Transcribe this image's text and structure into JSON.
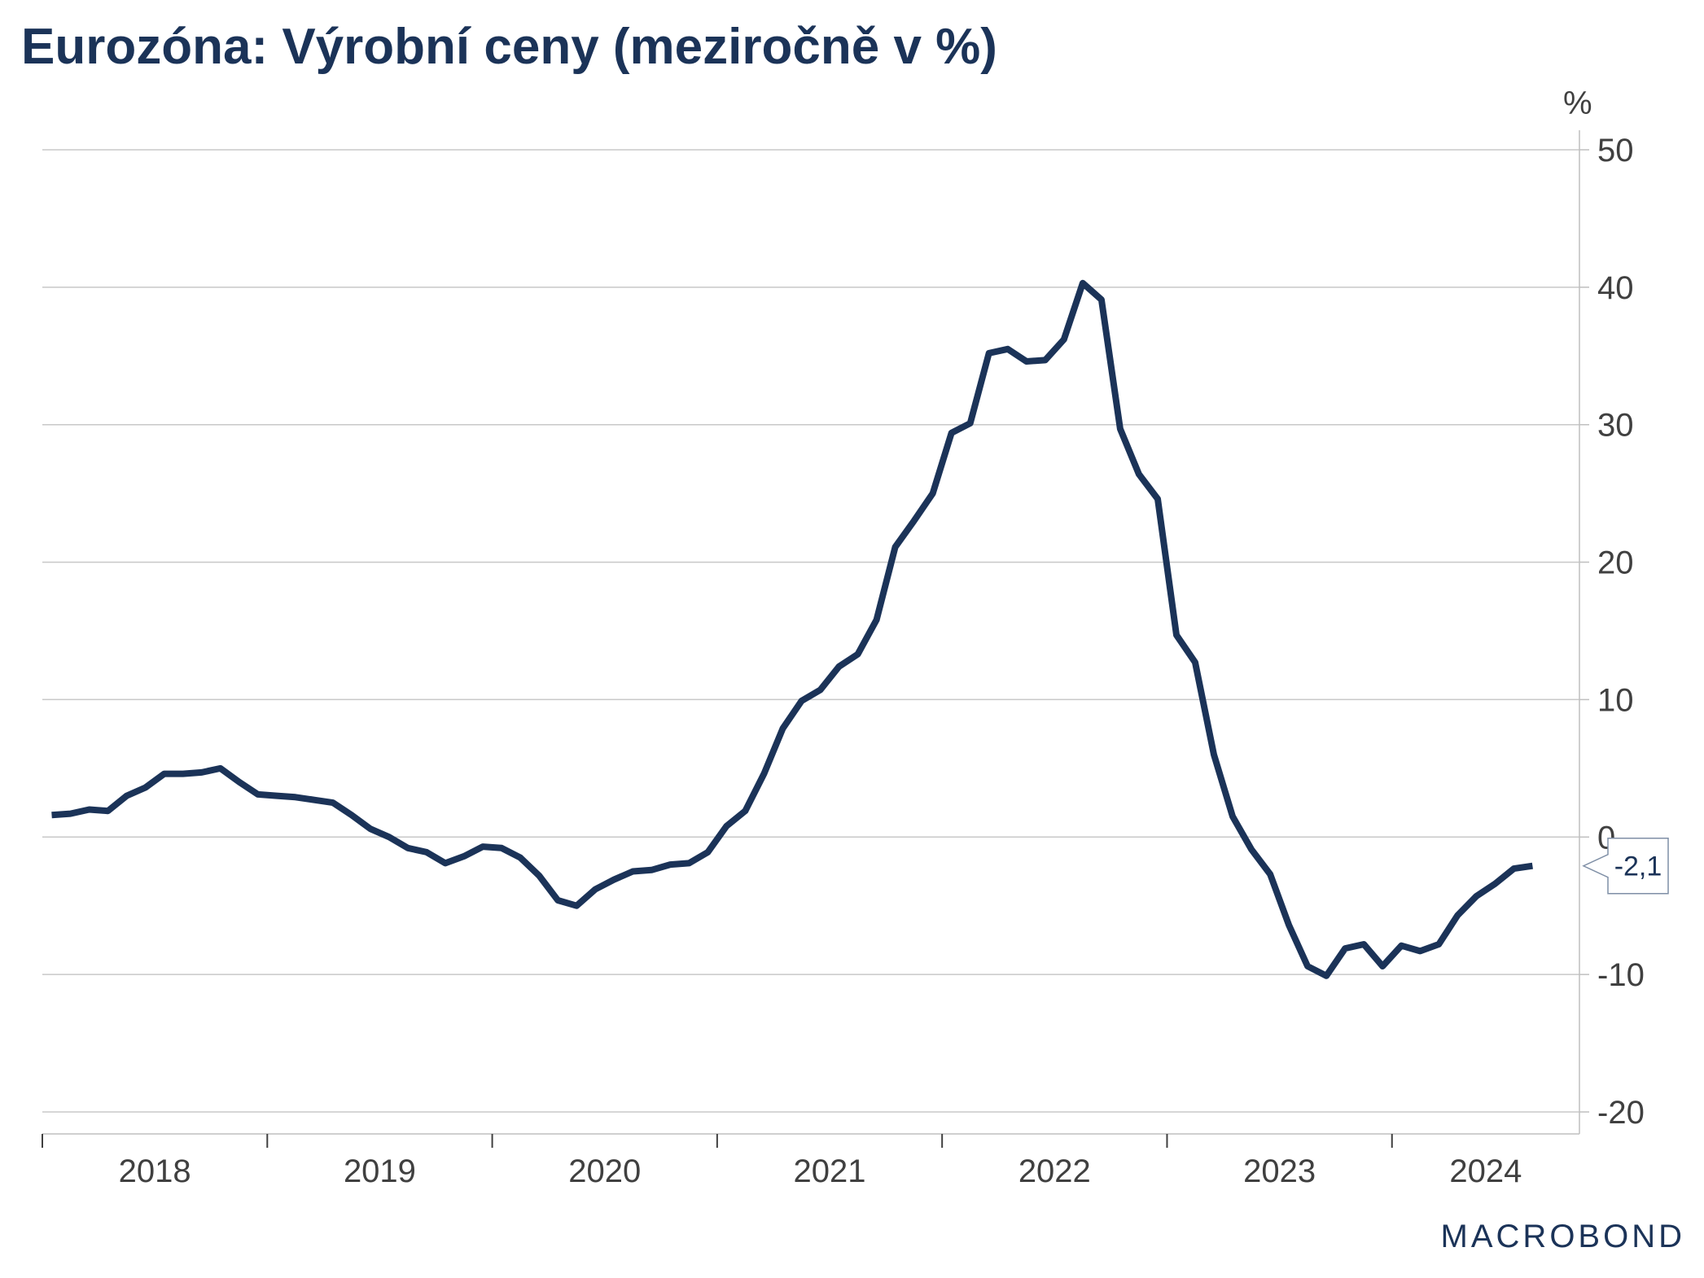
{
  "title": "Eurozóna: Výrobní ceny (meziročně v %)",
  "watermark": "MACROBOND",
  "colors": {
    "line": "#1b3358",
    "title": "#1b3358",
    "grid": "#c8c8c8",
    "axis": "#bfbfbf",
    "text": "#404040",
    "logo": "#1b3358"
  },
  "chart_data": {
    "type": "line",
    "title": "Eurozóna: Výrobní ceny (meziročně v %)",
    "unit_label": "%",
    "ylim": [
      -22,
      53
    ],
    "yticks": [
      50,
      40,
      30,
      20,
      10,
      0,
      -10,
      -20
    ],
    "ytick_labels": [
      "50",
      "40",
      "30",
      "20",
      "10",
      "0",
      "-10",
      "-20"
    ],
    "grid": true,
    "y_axis_position": "right",
    "x_start": "2018-01",
    "x_end": "2024-10",
    "x_year_labels": [
      "2018",
      "2019",
      "2020",
      "2021",
      "2022",
      "2023",
      "2024"
    ],
    "end_label": "-2,1",
    "series": [
      {
        "x": [
          "2018-01",
          "2018-02",
          "2018-03",
          "2018-04",
          "2018-05",
          "2018-06",
          "2018-07",
          "2018-08",
          "2018-09",
          "2018-10",
          "2018-11",
          "2018-12",
          "2019-01",
          "2019-02",
          "2019-03",
          "2019-04",
          "2019-05",
          "2019-06",
          "2019-07",
          "2019-08",
          "2019-09",
          "2019-10",
          "2019-11",
          "2019-12",
          "2020-01",
          "2020-02",
          "2020-03",
          "2020-04",
          "2020-05",
          "2020-06",
          "2020-07",
          "2020-08",
          "2020-09",
          "2020-10",
          "2020-11",
          "2020-12",
          "2021-01",
          "2021-02",
          "2021-03",
          "2021-04",
          "2021-05",
          "2021-06",
          "2021-07",
          "2021-08",
          "2021-09",
          "2021-10",
          "2021-11",
          "2021-12",
          "2022-01",
          "2022-02",
          "2022-03",
          "2022-04",
          "2022-05",
          "2022-06",
          "2022-07",
          "2022-08",
          "2022-09",
          "2022-10",
          "2022-11",
          "2022-12",
          "2023-01",
          "2023-02",
          "2023-03",
          "2023-04",
          "2023-05",
          "2023-06",
          "2023-07",
          "2023-08",
          "2023-09",
          "2023-10",
          "2023-11",
          "2023-12",
          "2024-01",
          "2024-02",
          "2024-03",
          "2024-04",
          "2024-05",
          "2024-06",
          "2024-07",
          "2024-08"
        ],
        "values": [
          1.6,
          1.7,
          2.0,
          1.9,
          3.0,
          3.6,
          4.6,
          4.6,
          4.7,
          5.0,
          4.0,
          3.1,
          3.0,
          2.9,
          2.7,
          2.5,
          1.6,
          0.6,
          0.0,
          -0.8,
          -1.1,
          -1.9,
          -1.4,
          -0.7,
          -0.8,
          -1.5,
          -2.8,
          -4.6,
          -5.0,
          -3.8,
          -3.1,
          -2.5,
          -2.4,
          -2.0,
          -1.9,
          -1.1,
          0.8,
          1.9,
          4.6,
          7.9,
          9.9,
          10.7,
          12.4,
          13.3,
          15.8,
          21.1,
          23.0,
          25.0,
          29.4,
          30.1,
          35.2,
          35.5,
          34.6,
          34.7,
          36.2,
          40.3,
          39.1,
          29.7,
          26.4,
          24.6,
          14.7,
          12.7,
          6.0,
          1.5,
          -0.9,
          -2.7,
          -6.4,
          -9.4,
          -10.1,
          -8.1,
          -7.8,
          -9.4,
          -7.9,
          -8.3,
          -7.8,
          -5.7,
          -4.3,
          -3.4,
          -2.3,
          -2.1
        ]
      }
    ]
  }
}
